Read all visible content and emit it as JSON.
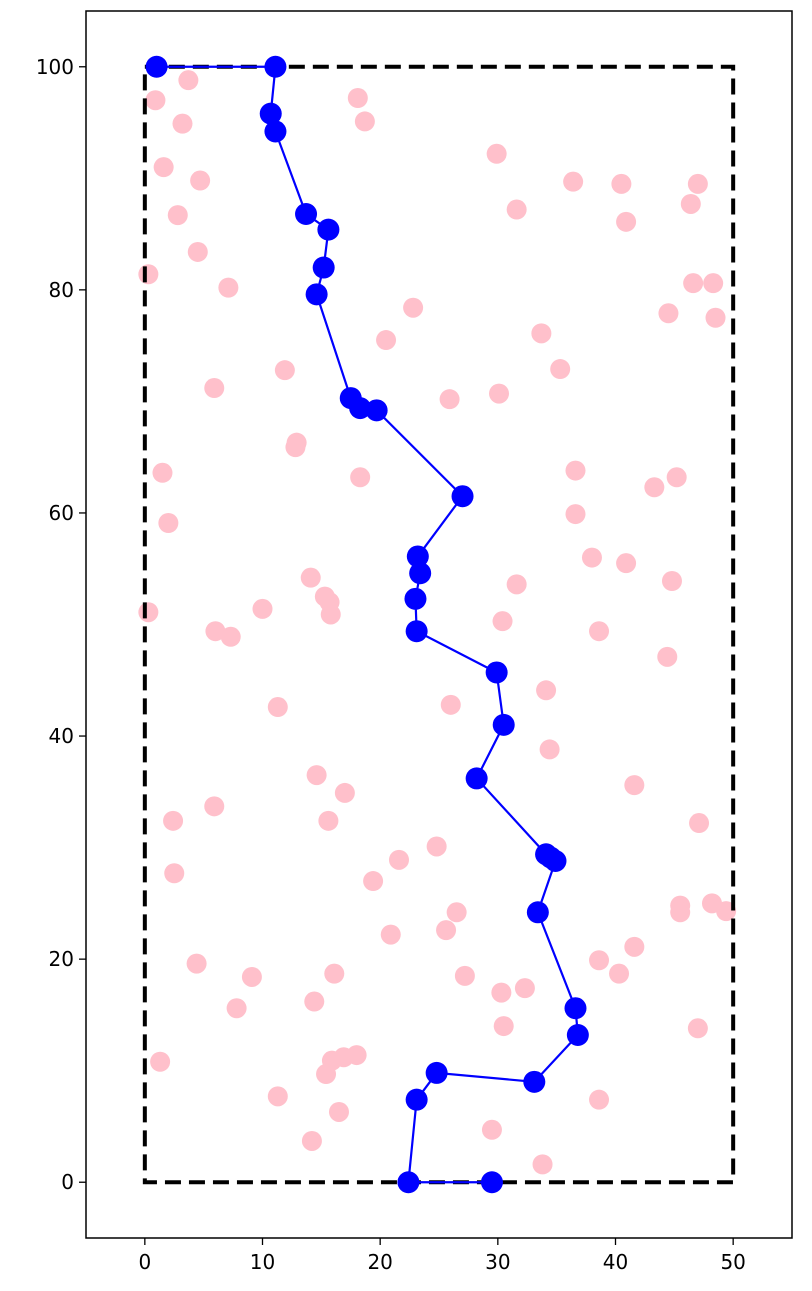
{
  "chart_data": {
    "type": "scatter",
    "title": "",
    "xlabel": "",
    "ylabel": "",
    "xlim": [
      -5,
      55
    ],
    "ylim": [
      -5,
      105
    ],
    "x_ticks": [
      0,
      10,
      20,
      30,
      40,
      50
    ],
    "y_ticks": [
      0,
      20,
      40,
      60,
      80,
      100
    ],
    "x_tick_labels": [
      "0",
      "10",
      "20",
      "30",
      "40",
      "50"
    ],
    "y_tick_labels": [
      "0",
      "20",
      "40",
      "60",
      "80",
      "100"
    ],
    "grid": false,
    "legend": "none",
    "boundary": {
      "x": [
        0,
        50
      ],
      "y": [
        0,
        100
      ],
      "style": "dashed",
      "color": "#000000"
    },
    "series": [
      {
        "kind": "scatter",
        "color": "#ffc0cb",
        "points": [
          [
            3.7,
            98.8
          ],
          [
            0.9,
            97.0
          ],
          [
            3.2,
            94.9
          ],
          [
            18.1,
            97.2
          ],
          [
            18.7,
            95.1
          ],
          [
            1.6,
            91.0
          ],
          [
            4.7,
            89.8
          ],
          [
            2.8,
            86.7
          ],
          [
            4.5,
            83.4
          ],
          [
            0.3,
            81.4
          ],
          [
            7.1,
            80.2
          ],
          [
            29.9,
            92.2
          ],
          [
            31.6,
            87.2
          ],
          [
            36.4,
            89.7
          ],
          [
            40.5,
            89.5
          ],
          [
            40.9,
            86.1
          ],
          [
            47.0,
            89.5
          ],
          [
            46.4,
            87.7
          ],
          [
            46.6,
            80.6
          ],
          [
            48.3,
            80.6
          ],
          [
            44.5,
            77.9
          ],
          [
            48.5,
            77.5
          ],
          [
            22.8,
            78.4
          ],
          [
            20.5,
            75.5
          ],
          [
            33.7,
            76.1
          ],
          [
            35.3,
            72.9
          ],
          [
            11.9,
            72.8
          ],
          [
            5.9,
            71.2
          ],
          [
            25.9,
            70.2
          ],
          [
            30.1,
            70.7
          ],
          [
            12.9,
            66.3
          ],
          [
            12.8,
            65.9
          ],
          [
            1.5,
            63.6
          ],
          [
            18.3,
            63.2
          ],
          [
            36.6,
            63.8
          ],
          [
            43.3,
            62.3
          ],
          [
            45.2,
            63.2
          ],
          [
            36.6,
            59.9
          ],
          [
            2.0,
            59.1
          ],
          [
            14.1,
            54.2
          ],
          [
            15.3,
            52.5
          ],
          [
            15.7,
            52.0
          ],
          [
            15.8,
            50.9
          ],
          [
            10.0,
            51.4
          ],
          [
            0.3,
            51.1
          ],
          [
            6.0,
            49.4
          ],
          [
            7.3,
            48.9
          ],
          [
            31.6,
            53.6
          ],
          [
            38.0,
            56.0
          ],
          [
            40.9,
            55.5
          ],
          [
            44.8,
            53.9
          ],
          [
            30.4,
            50.3
          ],
          [
            38.6,
            49.4
          ],
          [
            44.4,
            47.1
          ],
          [
            11.3,
            42.6
          ],
          [
            26.0,
            42.8
          ],
          [
            34.1,
            44.1
          ],
          [
            34.4,
            38.8
          ],
          [
            41.6,
            35.6
          ],
          [
            14.6,
            36.5
          ],
          [
            17.0,
            34.9
          ],
          [
            5.9,
            33.7
          ],
          [
            2.4,
            32.4
          ],
          [
            15.6,
            32.4
          ],
          [
            47.1,
            32.2
          ],
          [
            24.8,
            30.1
          ],
          [
            21.6,
            28.9
          ],
          [
            19.4,
            27.0
          ],
          [
            2.5,
            27.7
          ],
          [
            45.5,
            24.8
          ],
          [
            45.5,
            24.2
          ],
          [
            48.2,
            25.0
          ],
          [
            49.4,
            24.3
          ],
          [
            26.5,
            24.2
          ],
          [
            25.6,
            22.6
          ],
          [
            20.9,
            22.2
          ],
          [
            41.6,
            21.1
          ],
          [
            4.4,
            19.6
          ],
          [
            9.1,
            18.4
          ],
          [
            16.1,
            18.7
          ],
          [
            27.2,
            18.5
          ],
          [
            30.3,
            17.0
          ],
          [
            32.3,
            17.4
          ],
          [
            38.6,
            19.9
          ],
          [
            40.3,
            18.7
          ],
          [
            7.8,
            15.6
          ],
          [
            14.4,
            16.2
          ],
          [
            30.5,
            14.0
          ],
          [
            47.0,
            13.8
          ],
          [
            1.3,
            10.8
          ],
          [
            15.9,
            10.9
          ],
          [
            16.9,
            11.2
          ],
          [
            18.0,
            11.4
          ],
          [
            15.4,
            9.7
          ],
          [
            11.3,
            7.7
          ],
          [
            38.6,
            7.4
          ],
          [
            16.5,
            6.3
          ],
          [
            29.5,
            4.7
          ],
          [
            14.2,
            3.7
          ],
          [
            33.8,
            1.6
          ]
        ]
      },
      {
        "kind": "line+markers",
        "color": "#0000ff",
        "points": [
          [
            1.0,
            100.0
          ],
          [
            11.1,
            100.0
          ],
          [
            10.7,
            95.8
          ],
          [
            11.1,
            94.2
          ],
          [
            13.7,
            86.8
          ],
          [
            15.6,
            85.4
          ],
          [
            15.2,
            82.0
          ],
          [
            14.6,
            79.6
          ],
          [
            17.5,
            70.3
          ],
          [
            18.3,
            69.4
          ],
          [
            19.7,
            69.2
          ],
          [
            27.0,
            61.5
          ],
          [
            23.2,
            56.1
          ],
          [
            23.4,
            54.6
          ],
          [
            23.0,
            52.3
          ],
          [
            23.1,
            49.4
          ],
          [
            29.9,
            45.7
          ],
          [
            30.5,
            41.0
          ],
          [
            28.2,
            36.2
          ],
          [
            34.1,
            29.4
          ],
          [
            34.5,
            29.1
          ],
          [
            34.9,
            28.8
          ],
          [
            33.4,
            24.2
          ],
          [
            36.6,
            15.6
          ],
          [
            36.8,
            13.2
          ],
          [
            33.1,
            9.0
          ],
          [
            24.8,
            9.8
          ],
          [
            23.1,
            7.4
          ],
          [
            22.4,
            0.0
          ],
          [
            29.5,
            0.0
          ]
        ]
      }
    ]
  }
}
